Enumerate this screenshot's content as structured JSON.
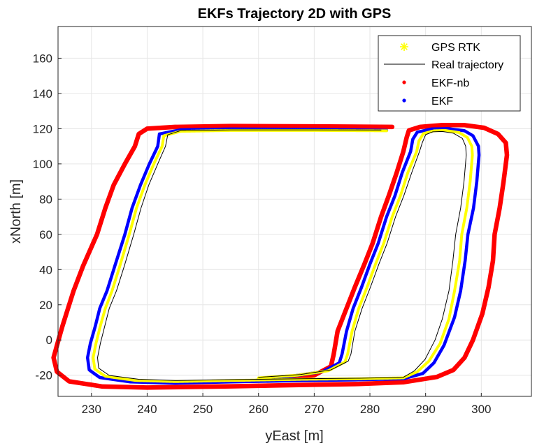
{
  "chart_data": {
    "type": "scatter",
    "title": "EKFs Trajectory 2D with GPS",
    "xlabel": "yEast [m]",
    "ylabel": "xNorth [m]",
    "xlim": [
      224,
      309
    ],
    "ylim": [
      -32,
      178
    ],
    "xticks": [
      230,
      240,
      250,
      260,
      270,
      280,
      290,
      300
    ],
    "yticks": [
      -20,
      0,
      20,
      40,
      60,
      80,
      100,
      120,
      140,
      160
    ],
    "grid": true,
    "legend_position": "top-right",
    "colors": {
      "gps": "#ffff00",
      "real": "#000000",
      "ekf_nb": "#ff0000",
      "ekf": "#0000ff",
      "grid": "#e6e6e6",
      "axis": "#262626"
    },
    "legend": [
      {
        "key": "gps",
        "label": "GPS RTK",
        "marker": "asterisk"
      },
      {
        "key": "real",
        "label": "Real trajectory",
        "marker": "line"
      },
      {
        "key": "ekf_nb",
        "label": "EKF-nb",
        "marker": "dot"
      },
      {
        "key": "ekf",
        "label": "EKF",
        "marker": "dot"
      }
    ],
    "series": [
      {
        "key": "ekf_nb",
        "name": "EKF-nb",
        "points": [
          [
            284,
            121
          ],
          [
            270,
            121.3
          ],
          [
            255,
            121.5
          ],
          [
            245,
            121
          ],
          [
            240,
            120
          ],
          [
            238.5,
            117
          ],
          [
            237.8,
            110
          ],
          [
            236,
            100
          ],
          [
            234,
            88
          ],
          [
            232.5,
            75
          ],
          [
            231,
            60
          ],
          [
            228.5,
            42
          ],
          [
            226.8,
            28
          ],
          [
            225.8,
            18
          ],
          [
            224.8,
            8
          ],
          [
            223.9,
            -2
          ],
          [
            223.2,
            -10
          ],
          [
            223.8,
            -18
          ],
          [
            226,
            -23.5
          ],
          [
            232,
            -26.4
          ],
          [
            240,
            -27
          ],
          [
            255,
            -26.3
          ],
          [
            268,
            -25.5
          ],
          [
            278,
            -25
          ],
          [
            286,
            -24
          ],
          [
            292,
            -21
          ],
          [
            295,
            -17
          ],
          [
            297,
            -10
          ],
          [
            298.5,
            0
          ],
          [
            300.2,
            15
          ],
          [
            301.3,
            30
          ],
          [
            302.1,
            45
          ],
          [
            302.4,
            60
          ],
          [
            303.3,
            75
          ],
          [
            304,
            90
          ],
          [
            304.6,
            105
          ],
          [
            304.4,
            112
          ],
          [
            303,
            117
          ],
          [
            300.5,
            120.5
          ],
          [
            297,
            122
          ],
          [
            293,
            122
          ],
          [
            289,
            121
          ],
          [
            287,
            119
          ],
          [
            286.6,
            115
          ],
          [
            286,
            107
          ],
          [
            284.8,
            95
          ],
          [
            283.4,
            82
          ],
          [
            282,
            70
          ],
          [
            280.5,
            55
          ],
          [
            279,
            43
          ],
          [
            277.3,
            30
          ],
          [
            275.8,
            18
          ],
          [
            274.2,
            5
          ],
          [
            273.5,
            -8
          ],
          [
            273,
            -15
          ],
          [
            270,
            -20
          ],
          [
            265,
            -22
          ],
          [
            260,
            -23
          ]
        ]
      },
      {
        "key": "ekf",
        "name": "EKF",
        "points": [
          [
            283,
            119
          ],
          [
            270,
            119.6
          ],
          [
            255,
            119.8
          ],
          [
            246,
            119.3
          ],
          [
            242.2,
            117
          ],
          [
            241.9,
            110
          ],
          [
            240.4,
            100
          ],
          [
            238.8,
            88
          ],
          [
            237.3,
            75
          ],
          [
            236,
            60
          ],
          [
            234.2,
            42
          ],
          [
            232.8,
            28
          ],
          [
            231.5,
            18
          ],
          [
            230.7,
            8
          ],
          [
            229.8,
            -2
          ],
          [
            229.3,
            -10
          ],
          [
            229.6,
            -17
          ],
          [
            231.5,
            -21.3
          ],
          [
            237,
            -23.8
          ],
          [
            245,
            -24.5
          ],
          [
            255,
            -23.8
          ],
          [
            268,
            -23
          ],
          [
            278,
            -22.6
          ],
          [
            286,
            -22
          ],
          [
            289.5,
            -19
          ],
          [
            291.5,
            -13
          ],
          [
            293.3,
            -3
          ],
          [
            295.2,
            13
          ],
          [
            296.3,
            28
          ],
          [
            297.1,
            45
          ],
          [
            297.6,
            60
          ],
          [
            298.6,
            75
          ],
          [
            299.2,
            90
          ],
          [
            299.6,
            105
          ],
          [
            299.5,
            110
          ],
          [
            298.5,
            116
          ],
          [
            297,
            118.8
          ],
          [
            294,
            120
          ],
          [
            291,
            119.8
          ],
          [
            288.5,
            118
          ],
          [
            287.7,
            114
          ],
          [
            287.3,
            107
          ],
          [
            285.8,
            95
          ],
          [
            284.5,
            82
          ],
          [
            283,
            70
          ],
          [
            281.5,
            55
          ],
          [
            280,
            43
          ],
          [
            278.5,
            30
          ],
          [
            277,
            18
          ],
          [
            275.8,
            5
          ],
          [
            275,
            -8
          ],
          [
            274.5,
            -13
          ],
          [
            271.5,
            -18
          ],
          [
            266,
            -20.5
          ],
          [
            260,
            -22
          ]
        ]
      },
      {
        "key": "gps",
        "name": "GPS RTK",
        "points": [
          [
            283,
            118.8
          ],
          [
            270,
            119
          ],
          [
            255,
            119
          ],
          [
            246,
            118.5
          ],
          [
            243,
            116
          ],
          [
            242.7,
            110
          ],
          [
            241.2,
            100
          ],
          [
            239.6,
            88
          ],
          [
            238.1,
            75
          ],
          [
            236.8,
            60
          ],
          [
            235.1,
            42
          ],
          [
            233.7,
            28
          ],
          [
            232.5,
            18
          ],
          [
            231.6,
            8
          ],
          [
            230.8,
            -2
          ],
          [
            230.3,
            -10
          ],
          [
            230.6,
            -16.5
          ],
          [
            232.5,
            -20.6
          ],
          [
            238,
            -23
          ],
          [
            245,
            -23.6
          ],
          [
            255,
            -23
          ],
          [
            268,
            -22.3
          ],
          [
            278,
            -22
          ],
          [
            286,
            -21.5
          ],
          [
            288.5,
            -18
          ],
          [
            290.6,
            -12
          ],
          [
            292.6,
            -2
          ],
          [
            294.2,
            12
          ],
          [
            295.2,
            28
          ],
          [
            296.1,
            45
          ],
          [
            296.5,
            60
          ],
          [
            297.4,
            75
          ],
          [
            298,
            90
          ],
          [
            298.4,
            105
          ],
          [
            298.3,
            110
          ],
          [
            297.5,
            115
          ],
          [
            296,
            117.8
          ],
          [
            293.5,
            119
          ],
          [
            291.5,
            118.8
          ],
          [
            289.6,
            117.2
          ],
          [
            288.8,
            113
          ],
          [
            288.4,
            107
          ],
          [
            286.8,
            95
          ],
          [
            285.5,
            82
          ],
          [
            284,
            70
          ],
          [
            282.5,
            55
          ],
          [
            281,
            43
          ],
          [
            279.5,
            30
          ],
          [
            278,
            18
          ],
          [
            276.8,
            5
          ],
          [
            276,
            -8
          ],
          [
            275.5,
            -12.5
          ],
          [
            272.5,
            -17.5
          ],
          [
            267,
            -20
          ],
          [
            260,
            -21.5
          ]
        ]
      },
      {
        "key": "real",
        "name": "Real trajectory",
        "points": [
          [
            282,
            119.2
          ],
          [
            270,
            119.3
          ],
          [
            255,
            119.3
          ],
          [
            246,
            118.9
          ],
          [
            243.7,
            116.5
          ],
          [
            243.3,
            110
          ],
          [
            241.9,
            100
          ],
          [
            240.3,
            88
          ],
          [
            238.9,
            75
          ],
          [
            237.6,
            60
          ],
          [
            235.9,
            42
          ],
          [
            234.5,
            28
          ],
          [
            233.2,
            18
          ],
          [
            232.4,
            8
          ],
          [
            231.6,
            -2
          ],
          [
            231.1,
            -10
          ],
          [
            231.3,
            -16
          ],
          [
            233.2,
            -20.1
          ],
          [
            238.5,
            -22.3
          ],
          [
            245,
            -23
          ],
          [
            255,
            -22.5
          ],
          [
            268,
            -22
          ],
          [
            278,
            -21.7
          ],
          [
            286,
            -21.2
          ],
          [
            288,
            -17.5
          ],
          [
            289.9,
            -11
          ],
          [
            291.7,
            0
          ],
          [
            293,
            12
          ],
          [
            294.2,
            28
          ],
          [
            294.9,
            45
          ],
          [
            295.4,
            60
          ],
          [
            296.3,
            75
          ],
          [
            296.9,
            90
          ],
          [
            297.3,
            105
          ],
          [
            297.2,
            110
          ],
          [
            296.6,
            114.5
          ],
          [
            295,
            117.4
          ],
          [
            293,
            118.4
          ],
          [
            291.3,
            118.2
          ],
          [
            290,
            116.6
          ],
          [
            289.4,
            112
          ],
          [
            288.9,
            107
          ],
          [
            287.5,
            95
          ],
          [
            286.1,
            82
          ],
          [
            284.6,
            70
          ],
          [
            283.1,
            55
          ],
          [
            281.6,
            43
          ],
          [
            280.1,
            30
          ],
          [
            278.6,
            18
          ],
          [
            277.3,
            5
          ],
          [
            276.6,
            -8
          ],
          [
            276.1,
            -12
          ],
          [
            273,
            -17
          ],
          [
            267.5,
            -19.6
          ],
          [
            260,
            -21.2
          ]
        ]
      }
    ]
  }
}
